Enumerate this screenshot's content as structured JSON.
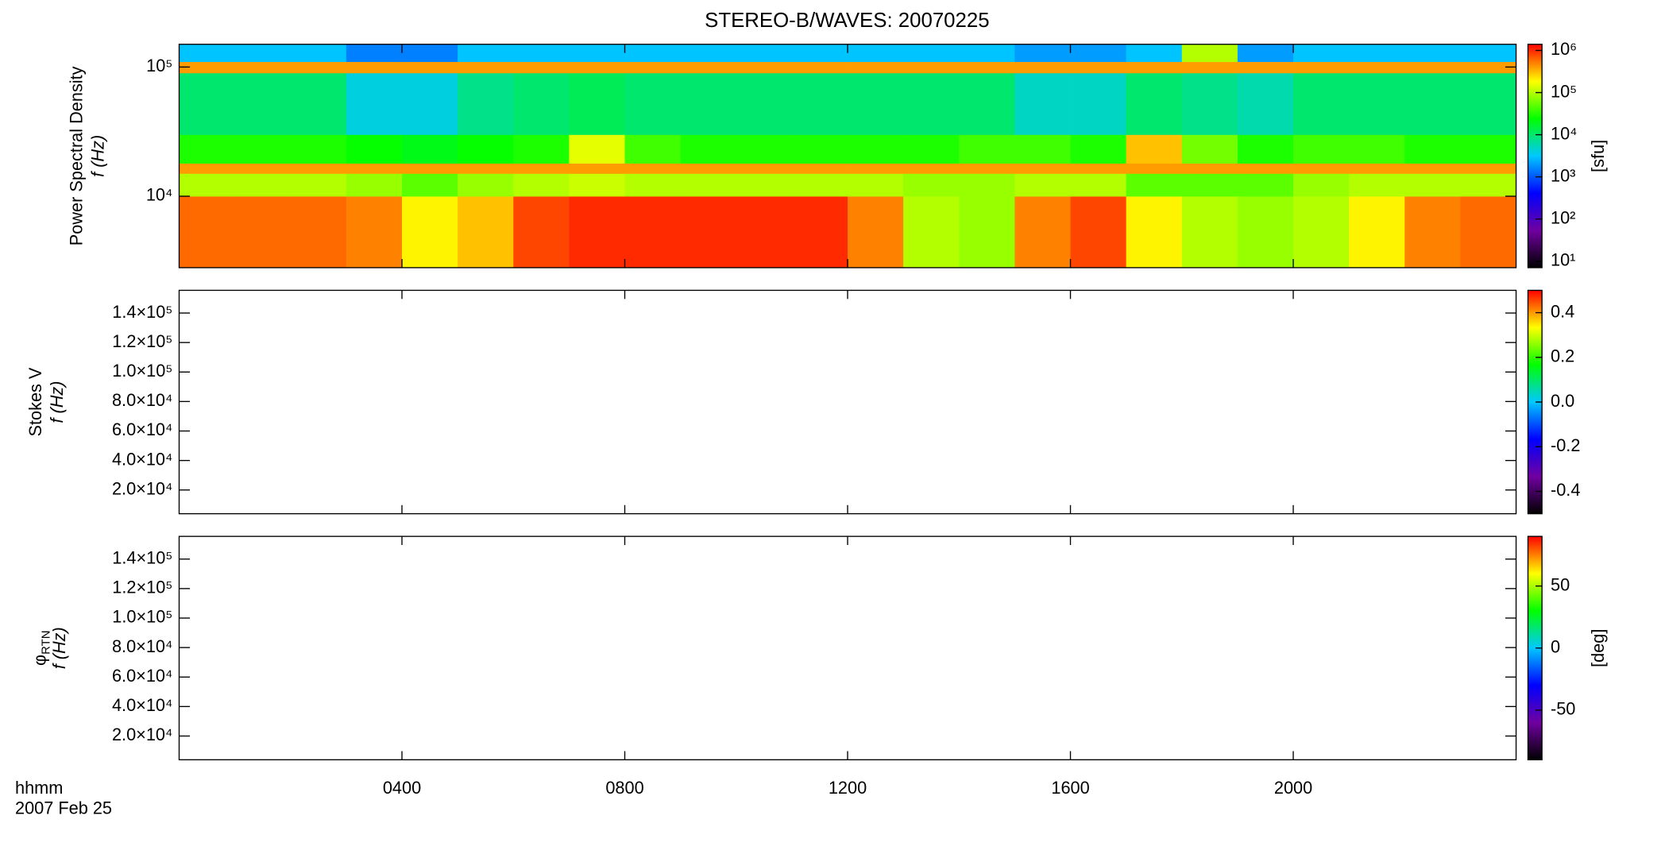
{
  "chart_data": {
    "title": "STEREO-B/WAVES: 20070225",
    "x_label": "hhmm",
    "date": "2007 Feb 25",
    "xlim": [
      0,
      24
    ],
    "xticks": [
      {
        "value": 4,
        "label": "0400"
      },
      {
        "value": 8,
        "label": "0800"
      },
      {
        "value": 12,
        "label": "1200"
      },
      {
        "value": 16,
        "label": "1600"
      },
      {
        "value": 20,
        "label": "2000"
      }
    ],
    "colormap": [
      "#000000",
      "#7000a0",
      "#0000ff",
      "#00c8ff",
      "#00ff00",
      "#ffff00",
      "#ff0000"
    ],
    "panels": [
      {
        "type": "heatmap",
        "ylabel": "Power Spectral Density",
        "ylabel2": "f (Hz)",
        "ylog": true,
        "ylim": [
          2800,
          150000
        ],
        "yticks": [
          {
            "value": 10000,
            "label": "10⁴"
          },
          {
            "value": 100000,
            "label": "10⁵"
          }
        ],
        "zlog": true,
        "zlim": [
          7,
          1400000
        ],
        "zlabel": "[sfu]",
        "zticks": [
          {
            "value": 10,
            "label": "10¹"
          },
          {
            "value": 100,
            "label": "10²"
          },
          {
            "value": 1000,
            "label": "10³"
          },
          {
            "value": 10000,
            "label": "10⁴"
          },
          {
            "value": 100000,
            "label": "10⁵"
          },
          {
            "value": 1000000,
            "label": "10⁶"
          }
        ],
        "x_edges": [
          0,
          1,
          2,
          3,
          4,
          5,
          6,
          7,
          8,
          9,
          10,
          11,
          12,
          13,
          14,
          15,
          16,
          17,
          18,
          19,
          20,
          21,
          22,
          23,
          24
        ],
        "y_edges": [
          2800,
          10000,
          15000,
          18000,
          30000,
          90000,
          110000,
          150000
        ],
        "z": [
          [
            600000,
            600000,
            600000,
            500000,
            200000,
            300000,
            800000,
            1000000,
            1000000,
            1000000,
            1000000,
            1000000,
            500000,
            100000,
            80000,
            500000,
            800000,
            200000,
            100000,
            80000,
            100000,
            200000,
            500000,
            600000
          ],
          [
            100000,
            100000,
            100000,
            80000,
            50000,
            80000,
            100000,
            120000,
            100000,
            100000,
            100000,
            100000,
            100000,
            80000,
            80000,
            100000,
            100000,
            50000,
            50000,
            50000,
            80000,
            100000,
            100000,
            100000
          ],
          [
            400000,
            400000,
            400000,
            400000,
            400000,
            400000,
            400000,
            400000,
            400000,
            400000,
            400000,
            400000,
            400000,
            400000,
            400000,
            400000,
            400000,
            400000,
            400000,
            400000,
            400000,
            400000,
            400000,
            400000
          ],
          [
            30000,
            30000,
            30000,
            25000,
            20000,
            25000,
            30000,
            150000,
            40000,
            30000,
            30000,
            30000,
            30000,
            30000,
            40000,
            40000,
            30000,
            300000,
            60000,
            30000,
            40000,
            40000,
            30000,
            30000
          ],
          [
            10000,
            10000,
            10000,
            4000,
            4000,
            8000,
            10000,
            12000,
            10000,
            10000,
            10000,
            10000,
            10000,
            10000,
            10000,
            5000,
            5000,
            10000,
            8000,
            6000,
            10000,
            10000,
            10000,
            10000
          ],
          [
            400000,
            400000,
            400000,
            400000,
            400000,
            400000,
            400000,
            400000,
            400000,
            400000,
            400000,
            400000,
            400000,
            400000,
            400000,
            400000,
            400000,
            400000,
            400000,
            400000,
            400000,
            400000,
            400000,
            400000
          ],
          [
            3000,
            3000,
            3000,
            1500,
            1500,
            3000,
            3000,
            3000,
            3000,
            3000,
            3000,
            3000,
            3000,
            3000,
            3000,
            2000,
            2000,
            3000,
            100000,
            2000,
            3000,
            3000,
            3000,
            3000
          ]
        ]
      },
      {
        "type": "empty",
        "ylabel": "Stokes V",
        "ylabel2": "f (Hz)",
        "ylog": false,
        "ylim": [
          3900,
          155400
        ],
        "yticks": [
          {
            "value": 20000,
            "label": "2.0×10⁴"
          },
          {
            "value": 40000,
            "label": "4.0×10⁴"
          },
          {
            "value": 60000,
            "label": "6.0×10⁴"
          },
          {
            "value": 80000,
            "label": "8.0×10⁴"
          },
          {
            "value": 100000,
            "label": "1.0×10⁵"
          },
          {
            "value": 120000,
            "label": "1.2×10⁵"
          },
          {
            "value": 140000,
            "label": "1.4×10⁵"
          }
        ],
        "zlog": false,
        "zlim": [
          -0.5,
          0.5
        ],
        "zticks": [
          -0.4,
          -0.2,
          {
            "value": 0,
            "label": "0.0"
          },
          0.2,
          0.4
        ]
      },
      {
        "type": "empty",
        "ylabel_symbol": "φ",
        "ylabel_sub": "RTN",
        "ylabel2": "f (Hz)",
        "ylog": false,
        "ylim": [
          3900,
          155400
        ],
        "yticks": [
          {
            "value": 20000,
            "label": "2.0×10⁴"
          },
          {
            "value": 40000,
            "label": "4.0×10⁴"
          },
          {
            "value": 60000,
            "label": "6.0×10⁴"
          },
          {
            "value": 80000,
            "label": "8.0×10⁴"
          },
          {
            "value": 100000,
            "label": "1.0×10⁵"
          },
          {
            "value": 120000,
            "label": "1.2×10⁵"
          },
          {
            "value": 140000,
            "label": "1.4×10⁵"
          }
        ],
        "zlog": false,
        "zlim": [
          -90,
          90
        ],
        "zlabel": "[deg]",
        "zticks": [
          -50,
          0,
          50
        ]
      }
    ]
  }
}
